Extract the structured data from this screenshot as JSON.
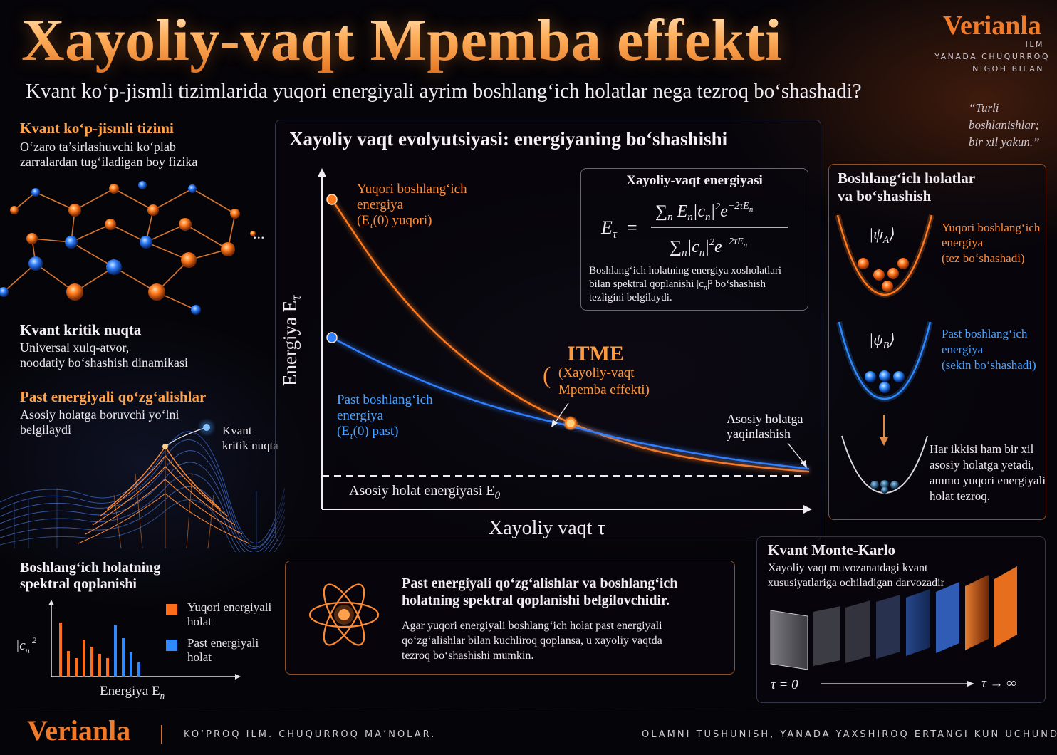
{
  "title": "Xayoliy-vaqt Mpemba effekti",
  "subtitle": "Kvant ko‘p-jismli tizimlarida yuqori energiyali ayrim boshlang‘ich holatlar nega tezroq bo‘shashadi?",
  "brand": {
    "name": "Verianla",
    "tag1": "ILM",
    "tag2": "YANADA CHUQURROQ",
    "tag3": "NIGOH BILAN"
  },
  "quote": "“Turli boshlanishlar; bir xil yakun.”",
  "left": {
    "many_body": {
      "title": "Kvant ko‘p-jismli tizimi",
      "text1": "O‘zaro ta’sirlashuvchi ko‘plab",
      "text2": "zarralardan tug‘iladigan boy fizika",
      "ellipsis": "..."
    },
    "critical": {
      "title": "Kvant kritik nuqta",
      "text1": "Universal xulq-atvor,",
      "text2": "noodatiy bo‘shashish dinamikasi"
    },
    "low_energy": {
      "title": "Past energiyali qo‘zg‘alishlar",
      "text1": "Asosiy holatga boruvchi yo‘lni",
      "text2": "belgilaydi",
      "point1": "Kvant",
      "point2": "kritik nuqta"
    },
    "spectral": {
      "title1": "Boshlang‘ich holatning",
      "title2": "spektral qoplanishi",
      "ylabel": "|c",
      "ysub": "n",
      "ysup": "2",
      "xlabel": "Energiya E",
      "xsub": "n",
      "legend_high1": "Yuqori energiyali",
      "legend_high2": "holat",
      "legend_low1": "Past energiyali",
      "legend_low2": "holat"
    }
  },
  "chart": {
    "title": "Xayoliy vaqt evolyutsiyasi: energiyaning bo‘shashishi",
    "ylabel": "Energiya E",
    "ylabel_sub": "τ",
    "xlabel": "Xayoliy vaqt τ",
    "ground_label": "Asosiy holat energiyasi E",
    "ground_sub": "0",
    "high_label1": "Yuqori boshlang‘ich",
    "high_label2": "energiya",
    "high_label3": "(E",
    "high_label3b": "τ",
    "high_label3c": "(0) yuqori)",
    "low_label1": "Past boshlang‘ich",
    "low_label2": "energiya",
    "low_label3": "(E",
    "low_label3b": "τ",
    "low_label3c": "(0) past)",
    "itme_title": "ITME",
    "itme_sub1": "(Xayoliy-vaqt",
    "itme_sub2": "Mpemba effekti)",
    "approach1": "Asosiy holatga",
    "approach2": "yaqinlashish",
    "formula_title": "Xayoliy-vaqt energiyasi",
    "formula_note1": "Boshlang‘ich holatning energiya xosholatlari",
    "formula_note2": "bilan spektral qoplanishi |c",
    "formula_note2b": "n",
    "formula_note2c": "|² bo‘shashish",
    "formula_note3": "tezligini belgilaydi."
  },
  "chart_data": {
    "type": "line",
    "xlabel": "Xayoliy vaqt τ",
    "ylabel": "Energiya Eτ",
    "x": [
      0,
      0.1,
      0.2,
      0.3,
      0.4,
      0.5,
      0.6,
      0.7,
      0.8,
      0.9,
      1.0
    ],
    "series": [
      {
        "name": "Yuqori boshlang‘ich energiya",
        "values": [
          1.0,
          0.74,
          0.54,
          0.39,
          0.27,
          0.19,
          0.125,
          0.08,
          0.05,
          0.03,
          0.015
        ],
        "color": "#ff7a1e"
      },
      {
        "name": "Past boshlang‘ich energiya",
        "values": [
          0.5,
          0.41,
          0.335,
          0.27,
          0.22,
          0.18,
          0.135,
          0.1,
          0.07,
          0.045,
          0.025
        ],
        "color": "#2f7fff"
      }
    ],
    "ground": 0,
    "crossing_x": 0.5
  },
  "right": {
    "title1": "Boshlang‘ich holatlar",
    "title2": "va bo‘shashish",
    "psiA": "ψ",
    "psiA_sub": "A",
    "psiB": "ψ",
    "psiB_sub": "B",
    "a1": "Yuqori boshlang‘ich",
    "a2": "energiya",
    "a3": "(tez bo‘shashadi)",
    "b1": "Past boshlang‘ich",
    "b2": "energiya",
    "b3": "(sekin bo‘shashadi)",
    "c1": "Har ikkisi ham bir xil",
    "c2": "asosiy holatga yetadi,",
    "c3": "ammo yuqori energiyali",
    "c4": "holat tezroq."
  },
  "bottom_mid": {
    "title1": "Past energiyali qo‘zg‘alishlar va boshlang‘ich",
    "title2": "holatning spektral qoplanishi belgilovchidir.",
    "text1": "Agar yuqori energiyali boshlang‘ich holat past energiyali",
    "text2": "qo‘zg‘alishlar bilan kuchliroq qoplansa, u xayoliy vaqtda",
    "text3": "tezroq bo‘shashishi mumkin."
  },
  "qmc": {
    "title": "Kvant Monte-Karlo",
    "text1": "Xayoliy vaqt muvozanatdagi kvant",
    "text2": "xususiyatlariga ochiladigan darvozadir",
    "t0": "τ = 0",
    "tinf": "τ → ∞"
  },
  "footer": {
    "brand": "Verianla",
    "left": "KO‘PROQ ILM. CHUQURROQ MA’NOLAR.",
    "right": "OLAMNI TUSHUNISH, YANADA YAXSHIROQ ERTANGI KUN UCHUNDIR."
  },
  "colors": {
    "orange": "#ff7a1e",
    "blue": "#2f7fff",
    "accent": "#ffa24a"
  }
}
